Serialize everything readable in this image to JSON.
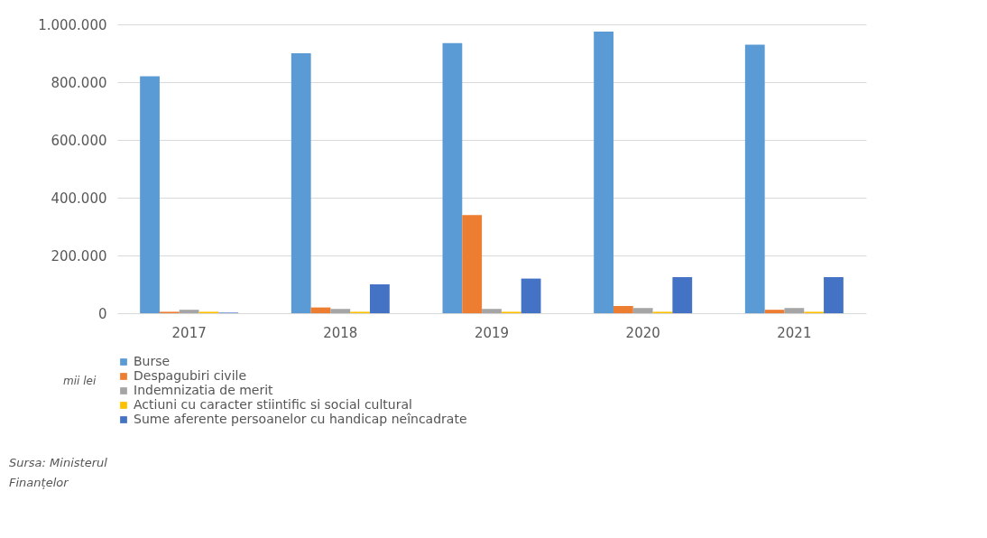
{
  "chart_data": {
    "type": "bar",
    "categories": [
      "2017",
      "2018",
      "2019",
      "2020",
      "2021"
    ],
    "series": [
      {
        "name": "Burse",
        "color": "#5b9bd5",
        "values": [
          820000,
          900000,
          935000,
          975000,
          930000
        ]
      },
      {
        "name": "Despagubiri civile",
        "color": "#ed7d31",
        "values": [
          5000,
          20000,
          340000,
          25000,
          12000
        ]
      },
      {
        "name": "Indemnizatia de merit",
        "color": "#a5a5a5",
        "values": [
          12000,
          15000,
          15000,
          18000,
          18000
        ]
      },
      {
        "name": "Actiuni cu caracter stiintific si social cultural",
        "color": "#ffc000",
        "values": [
          5000,
          5000,
          5000,
          5000,
          5000
        ]
      },
      {
        "name": "Sume aferente persoanelor cu handicap neîncadrate",
        "color": "#4472c4",
        "values": [
          2000,
          100000,
          120000,
          125000,
          125000
        ]
      }
    ],
    "ylim": [
      0,
      1000000
    ],
    "yticks": [
      {
        "value": 0,
        "label": "0"
      },
      {
        "value": 200000,
        "label": "200.000"
      },
      {
        "value": 400000,
        "label": "400.000"
      },
      {
        "value": 600000,
        "label": "600.000"
      },
      {
        "value": 800000,
        "label": "800.000"
      },
      {
        "value": 1000000,
        "label": "1.000.000"
      }
    ],
    "grid": "y",
    "legend": "bottom",
    "annotations": [
      "mii lei",
      "Sursa: Ministerul\nFinanțelor"
    ]
  }
}
